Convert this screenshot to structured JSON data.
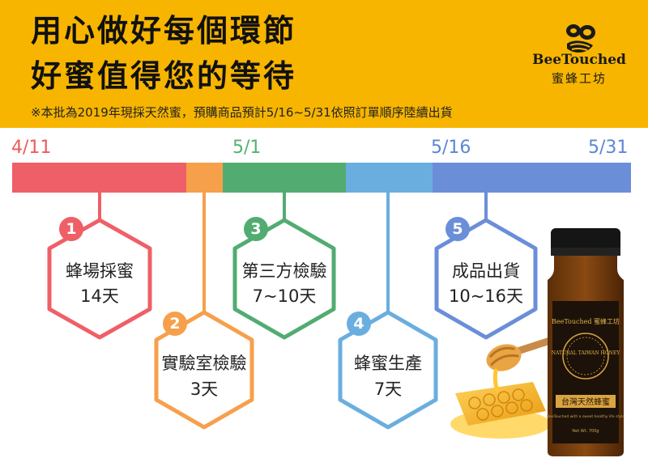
{
  "header": {
    "title_line1": "用心做好每個環節",
    "title_line2": "好蜜值得您的等待",
    "note": "※本批為2019年現採天然蜜，預購商品預計5/16~5/31依照訂單順序陸續出貨",
    "brand_en": "BeeTouched",
    "brand_zh": "蜜蜂工坊",
    "bg_color": "#f7b500"
  },
  "timeline": {
    "dates": [
      "4/11",
      "5/1",
      "5/16",
      "5/31"
    ],
    "date_colors": [
      "#ee5a5a",
      "#56b06f",
      "#5b86d6",
      "#5b86d6"
    ]
  },
  "steps": [
    {
      "number": "1",
      "label": "蜂場採蜜",
      "days": "14天",
      "color": "#ef5f67"
    },
    {
      "number": "2",
      "label": "實驗室檢驗",
      "days": "3天",
      "color": "#f6a04c"
    },
    {
      "number": "3",
      "label": "第三方檢驗",
      "days": "7~10天",
      "color": "#52ac72"
    },
    {
      "number": "4",
      "label": "蜂蜜生產",
      "days": "7天",
      "color": "#6aaedf"
    },
    {
      "number": "5",
      "label": "成品出貨",
      "days": "10~16天",
      "color": "#6b8ed9"
    }
  ],
  "product": {
    "jar_brand": "BeeTouched 蜜蜂工坊",
    "jar_badge": "NATURAL TAIWAN HONEY",
    "jar_label": "台灣天然蜂蜜",
    "jar_sub": "BeeTouched with a sweet healthy life style",
    "jar_weight": "Net Wt. 700g"
  }
}
